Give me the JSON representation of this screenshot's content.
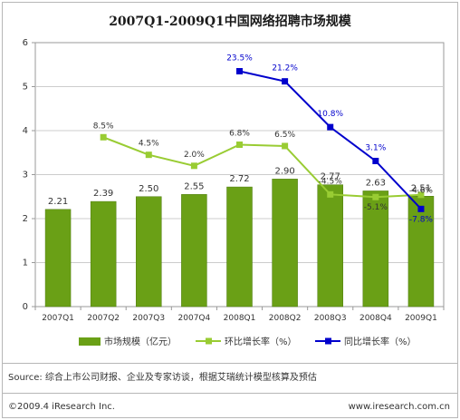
{
  "chart_data": {
    "type": "bar",
    "title": "2007Q1-2009Q1中国网络招聘市场规模",
    "categories": [
      "2007Q1",
      "2007Q2",
      "2007Q3",
      "2007Q4",
      "2008Q1",
      "2008Q2",
      "2008Q3",
      "2008Q4",
      "2009Q1"
    ],
    "y_axis_left": {
      "min": 0,
      "max": 6,
      "ticks": [
        "0",
        "1",
        "2",
        "3",
        "4",
        "5",
        "6"
      ]
    },
    "secondary_axis": {
      "min": -30,
      "max": 30
    },
    "series": [
      {
        "name": "市场规模（亿元）",
        "type": "bar",
        "color": "#6aa016",
        "values": [
          2.21,
          2.39,
          2.5,
          2.55,
          2.72,
          2.9,
          2.77,
          2.63,
          2.51
        ],
        "labels": [
          "2.21",
          "2.39",
          "2.50",
          "2.55",
          "2.72",
          "2.90",
          "2.77",
          "2.63",
          "2.51"
        ]
      },
      {
        "name": "环比增长率（%）",
        "type": "line",
        "axis": "secondary",
        "color": "#99cc33",
        "values": [
          null,
          8.5,
          4.5,
          2.0,
          6.8,
          6.5,
          -4.5,
          -5.1,
          -4.6
        ],
        "labels": [
          "",
          "8.5%",
          "4.5%",
          "2.0%",
          "6.8%",
          "6.5%",
          "-4.5%",
          "-5.1%",
          "-4.6%"
        ]
      },
      {
        "name": "同比增长率（%）",
        "type": "line",
        "axis": "secondary",
        "color": "#0000cc",
        "values": [
          null,
          null,
          null,
          null,
          23.5,
          21.2,
          10.8,
          3.1,
          -7.8
        ],
        "labels": [
          "",
          "",
          "",
          "",
          "23.5%",
          "21.2%",
          "10.8%",
          "3.1%",
          "-7.8%"
        ]
      }
    ],
    "grid": true,
    "legend": "bottom"
  },
  "source": "Source: 综合上市公司财报、企业及专家访谈，根据艾瑞统计模型核算及预估",
  "footer_left": "©2009.4 iResearch Inc.",
  "footer_right": "www.iresearch.com.cn"
}
